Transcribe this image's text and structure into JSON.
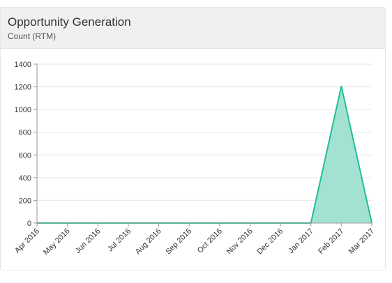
{
  "header": {
    "title": "Opportunity Generation",
    "subtitle": "Count (RTM)"
  },
  "chart_data": {
    "type": "area",
    "categories": [
      "Apr 2016",
      "May 2016",
      "Jun 2016",
      "Jul 2016",
      "Aug 2016",
      "Sep 2016",
      "Oct 2016",
      "Nov 2016",
      "Dec 2016",
      "Jan 2017",
      "Feb 2017",
      "Mar 2017"
    ],
    "series": [
      {
        "values": [
          0,
          0,
          0,
          0,
          0,
          0,
          0,
          0,
          0,
          0,
          1205,
          0
        ],
        "color": "#1fbf96",
        "fill": "#a3e2d2"
      }
    ],
    "yticks": [
      0,
      200,
      400,
      600,
      800,
      1000,
      1200,
      1400
    ],
    "ylim": [
      0,
      1400
    ],
    "grid": true,
    "legend": "none"
  }
}
